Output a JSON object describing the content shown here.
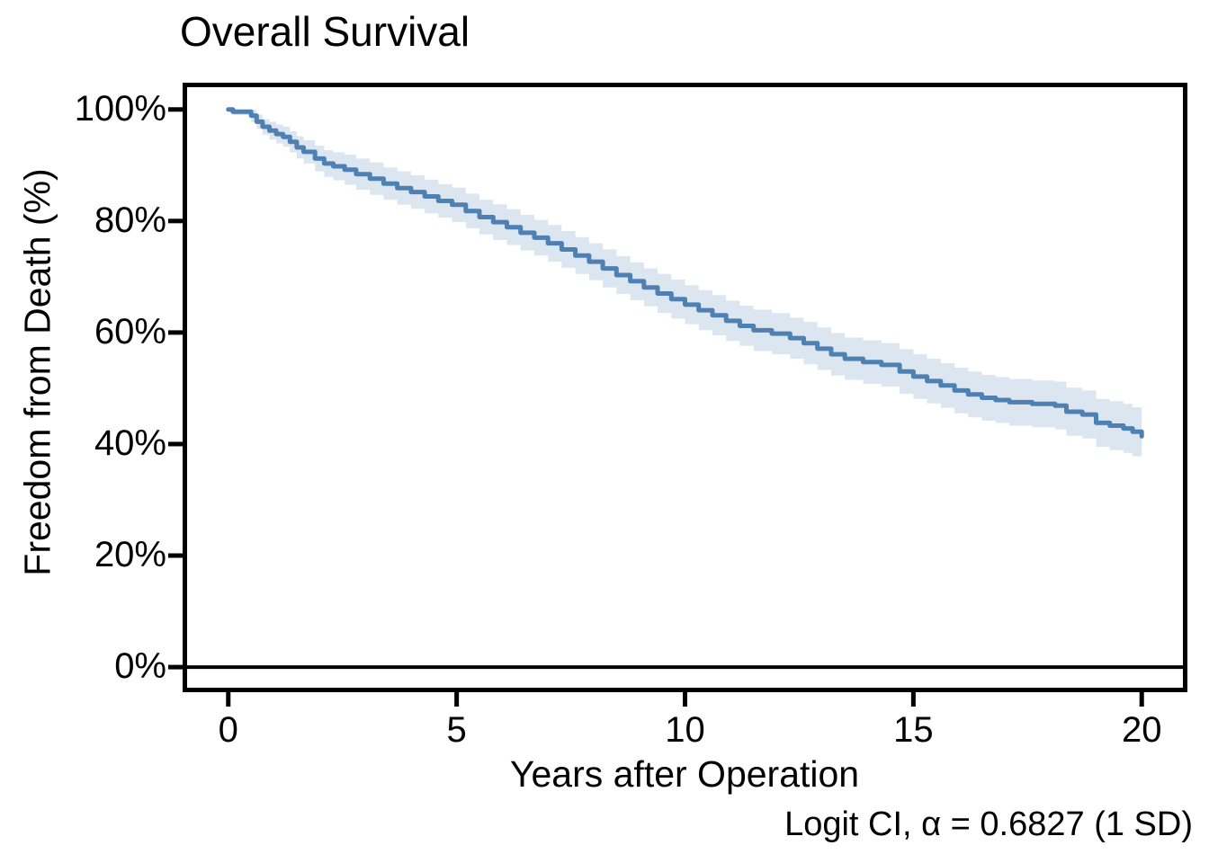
{
  "chart_data": {
    "type": "line",
    "subtype": "kaplan-meier-step-curve",
    "title": "Overall Survival",
    "xlabel": "Years after Operation",
    "ylabel": "Freedom from Death (%)",
    "caption": "Logit CI, α = 0.6827 (1 SD)",
    "grid": "off",
    "legend": "none",
    "x_range": [
      -1,
      21
    ],
    "y_range_percent": [
      -4.5,
      104.8
    ],
    "x_ticks": [
      0,
      5,
      10,
      15,
      20
    ],
    "y_ticks": [
      {
        "value": 0,
        "label": "0%"
      },
      {
        "value": 20,
        "label": "20%"
      },
      {
        "value": 40,
        "label": "40%"
      },
      {
        "value": 60,
        "label": "60%"
      },
      {
        "value": 80,
        "label": "80%"
      },
      {
        "value": 100,
        "label": "100%"
      }
    ],
    "reference_line_percent": 0,
    "colors": {
      "curve": "#4e80b2",
      "band": "#dce6f1",
      "axis": "#000000",
      "background": "#ffffff"
    },
    "series": [
      {
        "name": "Overall Survival",
        "time_years": [
          0,
          0.1,
          0.5,
          0.62,
          0.75,
          0.9,
          1.05,
          1.2,
          1.35,
          1.5,
          1.65,
          1.9,
          2.1,
          2.3,
          2.55,
          2.8,
          3.1,
          3.4,
          3.7,
          4.0,
          4.3,
          4.6,
          4.9,
          5.2,
          5.5,
          5.8,
          6.1,
          6.4,
          6.7,
          7.0,
          7.3,
          7.6,
          7.9,
          8.2,
          8.5,
          8.8,
          9.1,
          9.4,
          9.7,
          10.0,
          10.3,
          10.6,
          10.9,
          11.2,
          11.5,
          11.9,
          12.3,
          12.6,
          12.9,
          13.2,
          13.5,
          13.9,
          14.3,
          14.7,
          15.0,
          15.3,
          15.6,
          15.9,
          16.2,
          16.5,
          16.8,
          17.1,
          17.6,
          18.1,
          18.35,
          18.7,
          19.0,
          19.3,
          19.6,
          19.8,
          20.0
        ],
        "survival_percent": [
          100,
          99.6,
          98.9,
          97.8,
          96.9,
          96.2,
          95.6,
          95.1,
          94.2,
          93.2,
          92.4,
          91.2,
          90.3,
          89.8,
          89.2,
          88.4,
          87.6,
          86.7,
          85.9,
          85.2,
          84.4,
          83.6,
          82.9,
          81.8,
          80.7,
          79.8,
          78.9,
          77.9,
          77.0,
          76.0,
          74.9,
          73.8,
          72.7,
          71.5,
          70.3,
          69.2,
          68.1,
          67.0,
          66.0,
          65.0,
          64.0,
          63.1,
          62.1,
          61.2,
          60.4,
          59.8,
          59.0,
          58.1,
          57.1,
          56.1,
          55.3,
          54.7,
          54.2,
          53.0,
          52.1,
          51.3,
          50.5,
          49.6,
          48.9,
          48.3,
          47.9,
          47.5,
          47.2,
          46.9,
          45.8,
          45.3,
          43.8,
          43.3,
          42.8,
          42.2,
          41.4
        ],
        "ci_upper_percent": [
          100,
          100,
          100,
          99.1,
          98.3,
          97.8,
          97.3,
          96.9,
          96.1,
          95.2,
          94.5,
          93.5,
          92.7,
          92.3,
          91.9,
          91.2,
          90.5,
          89.6,
          88.9,
          88.2,
          87.4,
          86.6,
          86.0,
          84.9,
          83.8,
          83.0,
          82.1,
          81.1,
          80.2,
          79.3,
          78.2,
          77.1,
          76.0,
          74.9,
          73.7,
          72.6,
          71.5,
          70.5,
          69.5,
          68.5,
          67.6,
          66.7,
          65.7,
          64.8,
          64.1,
          63.5,
          62.7,
          61.9,
          60.9,
          59.9,
          59.1,
          58.6,
          58.1,
          57.0,
          56.1,
          55.3,
          54.5,
          53.7,
          53.0,
          52.4,
          52.0,
          51.7,
          51.4,
          51.2,
          50.1,
          49.6,
          48.1,
          47.7,
          47.2,
          46.6,
          45.8
        ],
        "ci_lower_percent": [
          99.7,
          99.0,
          97.7,
          96.5,
          95.5,
          94.6,
          93.9,
          93.3,
          92.3,
          91.2,
          90.3,
          88.9,
          87.9,
          87.3,
          86.5,
          85.6,
          84.7,
          83.8,
          82.9,
          82.2,
          81.4,
          80.6,
          79.8,
          78.7,
          77.6,
          76.6,
          75.7,
          74.7,
          73.8,
          72.7,
          71.6,
          70.5,
          69.4,
          68.1,
          66.9,
          65.8,
          64.7,
          63.5,
          62.5,
          61.5,
          60.4,
          59.5,
          58.5,
          57.6,
          56.7,
          56.1,
          55.3,
          54.3,
          53.3,
          52.3,
          51.5,
          50.8,
          50.3,
          49.0,
          48.1,
          47.3,
          46.5,
          45.5,
          44.8,
          44.2,
          43.8,
          43.3,
          43.0,
          42.6,
          41.5,
          41.0,
          39.5,
          38.9,
          38.4,
          37.8,
          37.0
        ]
      }
    ]
  }
}
